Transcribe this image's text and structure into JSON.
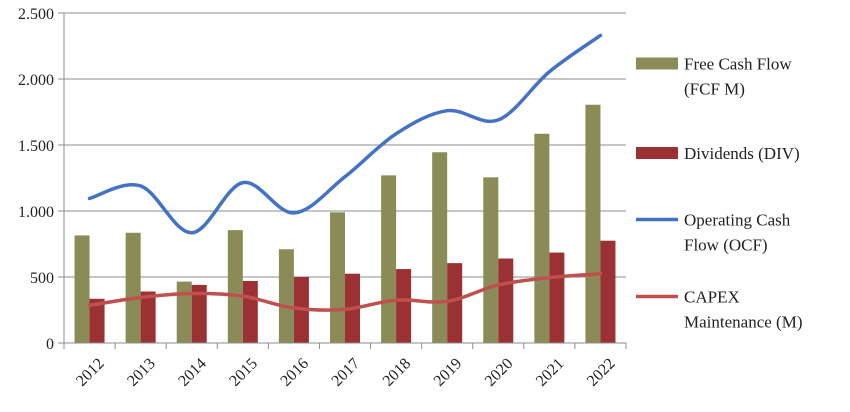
{
  "chart_data": {
    "type": "bar",
    "categories": [
      "2012",
      "2013",
      "2014",
      "2015",
      "2016",
      "2017",
      "2018",
      "2019",
      "2020",
      "2021",
      "2022"
    ],
    "ylim": [
      0,
      2500
    ],
    "y_ticks": [
      0,
      500,
      1000,
      1500,
      2000,
      2500
    ],
    "y_tick_labels": [
      "0",
      "500",
      "1.000",
      "1.500",
      "2.000",
      "2.500"
    ],
    "grid": true,
    "legend_position": "right",
    "series": [
      {
        "name": "Free Cash Flow (FCF M)",
        "legend_lines": [
          "Free Cash Flow",
          "(FCF M)"
        ],
        "kind": "bar",
        "color": "#8B8B57",
        "values": [
          815,
          835,
          465,
          855,
          710,
          990,
          1270,
          1445,
          1255,
          1585,
          1805
        ]
      },
      {
        "name": "Dividends (DIV)",
        "legend_lines": [
          "Dividends (DIV)"
        ],
        "kind": "bar",
        "color": "#9B3132",
        "values": [
          335,
          390,
          440,
          470,
          500,
          525,
          560,
          605,
          640,
          685,
          775
        ]
      },
      {
        "name": "Operating Cash Flow (OCF)",
        "legend_lines": [
          "Operating Cash",
          "Flow (OCF)"
        ],
        "kind": "line",
        "color": "#4472C4",
        "values": [
          1095,
          1190,
          835,
          1215,
          985,
          1260,
          1585,
          1760,
          1690,
          2055,
          2330
        ]
      },
      {
        "name": "CAPEX Maintenance (M)",
        "legend_lines": [
          "CAPEX",
          "Maintenance (M)"
        ],
        "kind": "line",
        "color": "#C0504D",
        "values": [
          285,
          345,
          375,
          355,
          265,
          255,
          325,
          315,
          440,
          495,
          525
        ]
      }
    ]
  }
}
